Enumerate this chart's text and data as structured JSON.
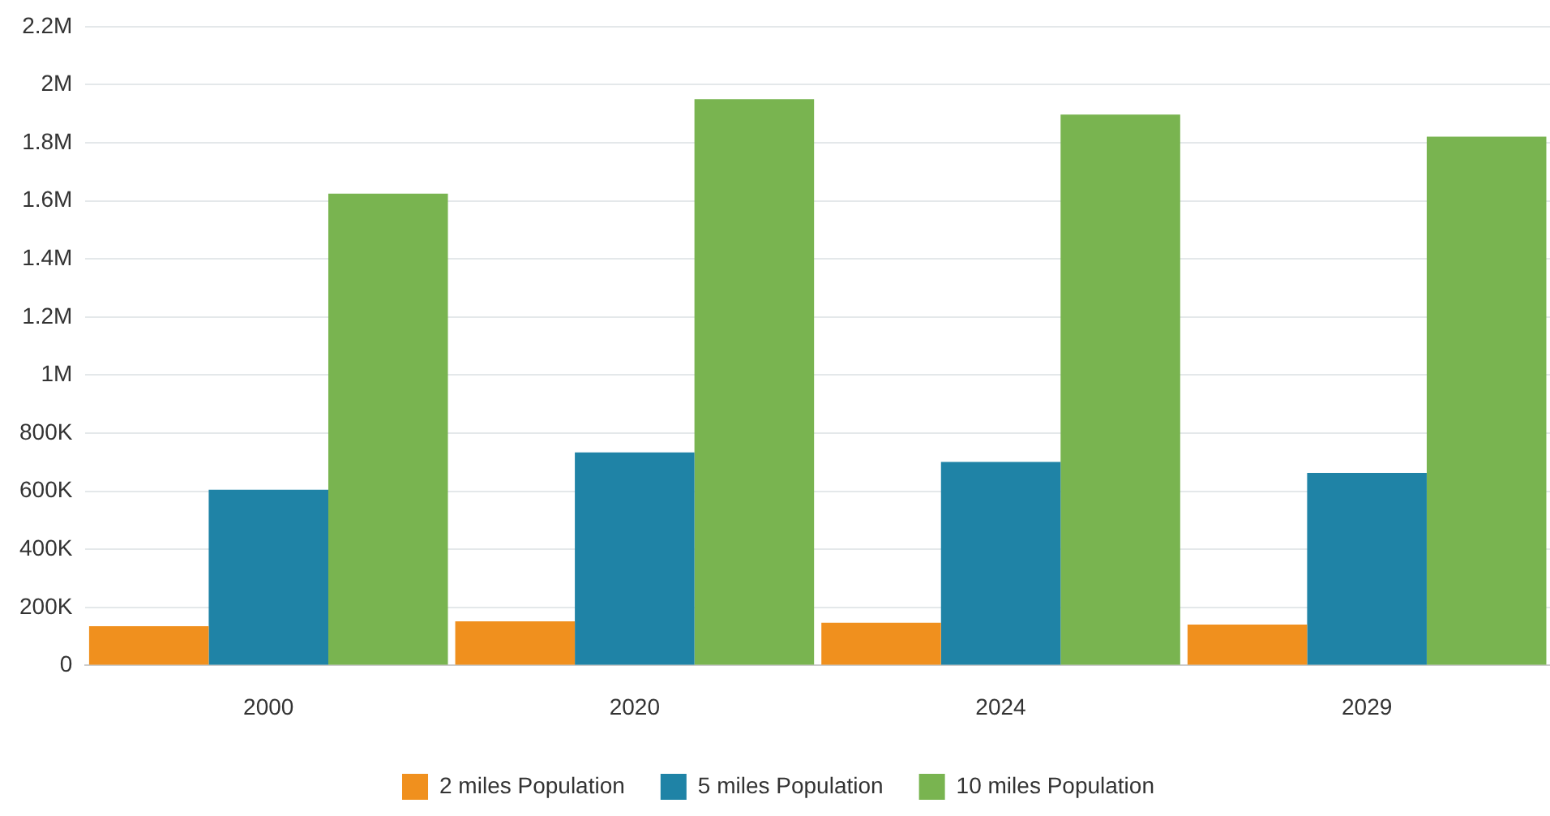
{
  "chart_data": {
    "type": "bar",
    "categories": [
      "2000",
      "2020",
      "2024",
      "2029"
    ],
    "series": [
      {
        "name": "2 miles Population",
        "color": "#f0901e",
        "values": [
          135000,
          152000,
          147000,
          141000
        ]
      },
      {
        "name": "5 miles Population",
        "color": "#1f83a6",
        "values": [
          605000,
          734000,
          701000,
          663000
        ]
      },
      {
        "name": "10 miles Population",
        "color": "#79b450",
        "values": [
          1625000,
          1950000,
          1897000,
          1821000
        ]
      }
    ],
    "ylim": [
      0,
      2200000
    ],
    "yticks": [
      0,
      {
        "value": 200000,
        "label": "200K"
      },
      {
        "value": 400000,
        "label": "400K"
      },
      {
        "value": 600000,
        "label": "600K"
      },
      {
        "value": 800000,
        "label": "800K"
      },
      {
        "value": 1000000,
        "label": "1M"
      },
      {
        "value": 1200000,
        "label": "1.2M"
      },
      {
        "value": 1400000,
        "label": "1.4M"
      },
      {
        "value": 1600000,
        "label": "1.6M"
      },
      {
        "value": 1800000,
        "label": "1.8M"
      },
      {
        "value": 2000000,
        "label": "2M"
      },
      {
        "value": 2200000,
        "label": "2.2M"
      }
    ],
    "grid": "y",
    "legend": "bottom"
  }
}
